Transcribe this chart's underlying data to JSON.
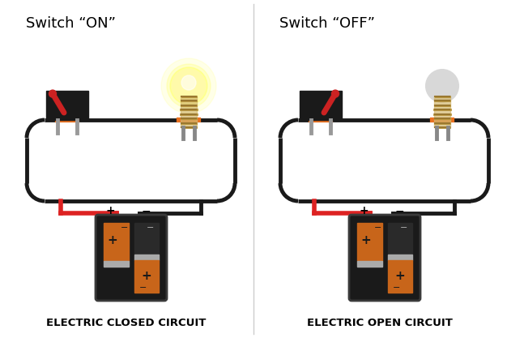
{
  "bg_color": "#ffffff",
  "title_left": "Switch “ON”",
  "title_right": "Switch “OFF”",
  "label_left": "ELECTRIC CLOSED CIRCUIT",
  "label_right": "ELECTRIC OPEN CIRCUIT",
  "wire_color": "#1a1a1a",
  "wire_lw": 3.5,
  "battery_outer": "#222222",
  "battery_cell_color": "#c8651a",
  "battery_separator": "#aaaaaa",
  "red_wire": "#dd2222",
  "orange_accent": "#e87020",
  "bulb_base_color": "#d4b870",
  "bulb_on_color": "#fffaaa",
  "bulb_off_color": "#d8d8d8",
  "bulb_glow_color": "#ffff44",
  "toggle_color": "#cc2222",
  "divider_color": "#cccccc"
}
